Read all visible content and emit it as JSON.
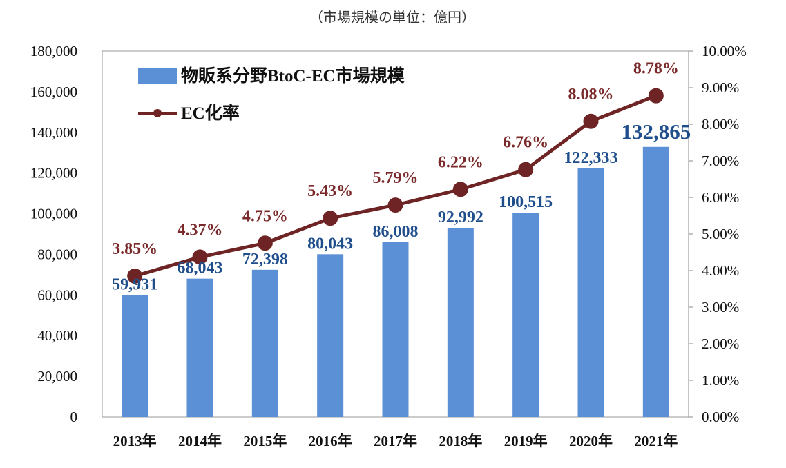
{
  "chart_data": {
    "type": "bar+line",
    "unit_note": "（市場規模の単位：億円）",
    "categories": [
      "2013年",
      "2014年",
      "2015年",
      "2016年",
      "2017年",
      "2018年",
      "2019年",
      "2020年",
      "2021年"
    ],
    "series": [
      {
        "name": "物販系分野BtoC-EC市場規模",
        "type": "bar",
        "axis": "left",
        "values": [
          59931,
          68043,
          72398,
          80043,
          86008,
          92992,
          100515,
          122333,
          132865
        ],
        "labels": [
          "59,931",
          "68,043",
          "72,398",
          "80,043",
          "86,008",
          "92,992",
          "100,515",
          "122,333",
          "132,865"
        ]
      },
      {
        "name": "EC化率",
        "type": "line",
        "axis": "right",
        "values": [
          3.85,
          4.37,
          4.75,
          5.43,
          5.79,
          6.22,
          6.76,
          8.08,
          8.78
        ],
        "labels": [
          "3.85%",
          "4.37%",
          "4.75%",
          "5.43%",
          "5.79%",
          "6.22%",
          "6.76%",
          "8.08%",
          "8.78%"
        ]
      }
    ],
    "left_axis": {
      "range": [
        0,
        180000
      ],
      "ticks": [
        "0",
        "20,000",
        "40,000",
        "60,000",
        "80,000",
        "100,000",
        "120,000",
        "140,000",
        "160,000",
        "180,000"
      ]
    },
    "right_axis": {
      "range": [
        0,
        10
      ],
      "ticks": [
        "0.00%",
        "1.00%",
        "2.00%",
        "3.00%",
        "4.00%",
        "5.00%",
        "6.00%",
        "7.00%",
        "8.00%",
        "9.00%",
        "10.00%"
      ]
    },
    "legend_position": "top-left",
    "colors": {
      "bar": "#5b8fd6",
      "bar_label": "#1f4e8c",
      "line": "#6e2424",
      "rate_label": "#7a2a2a",
      "axis": "#888888"
    }
  }
}
